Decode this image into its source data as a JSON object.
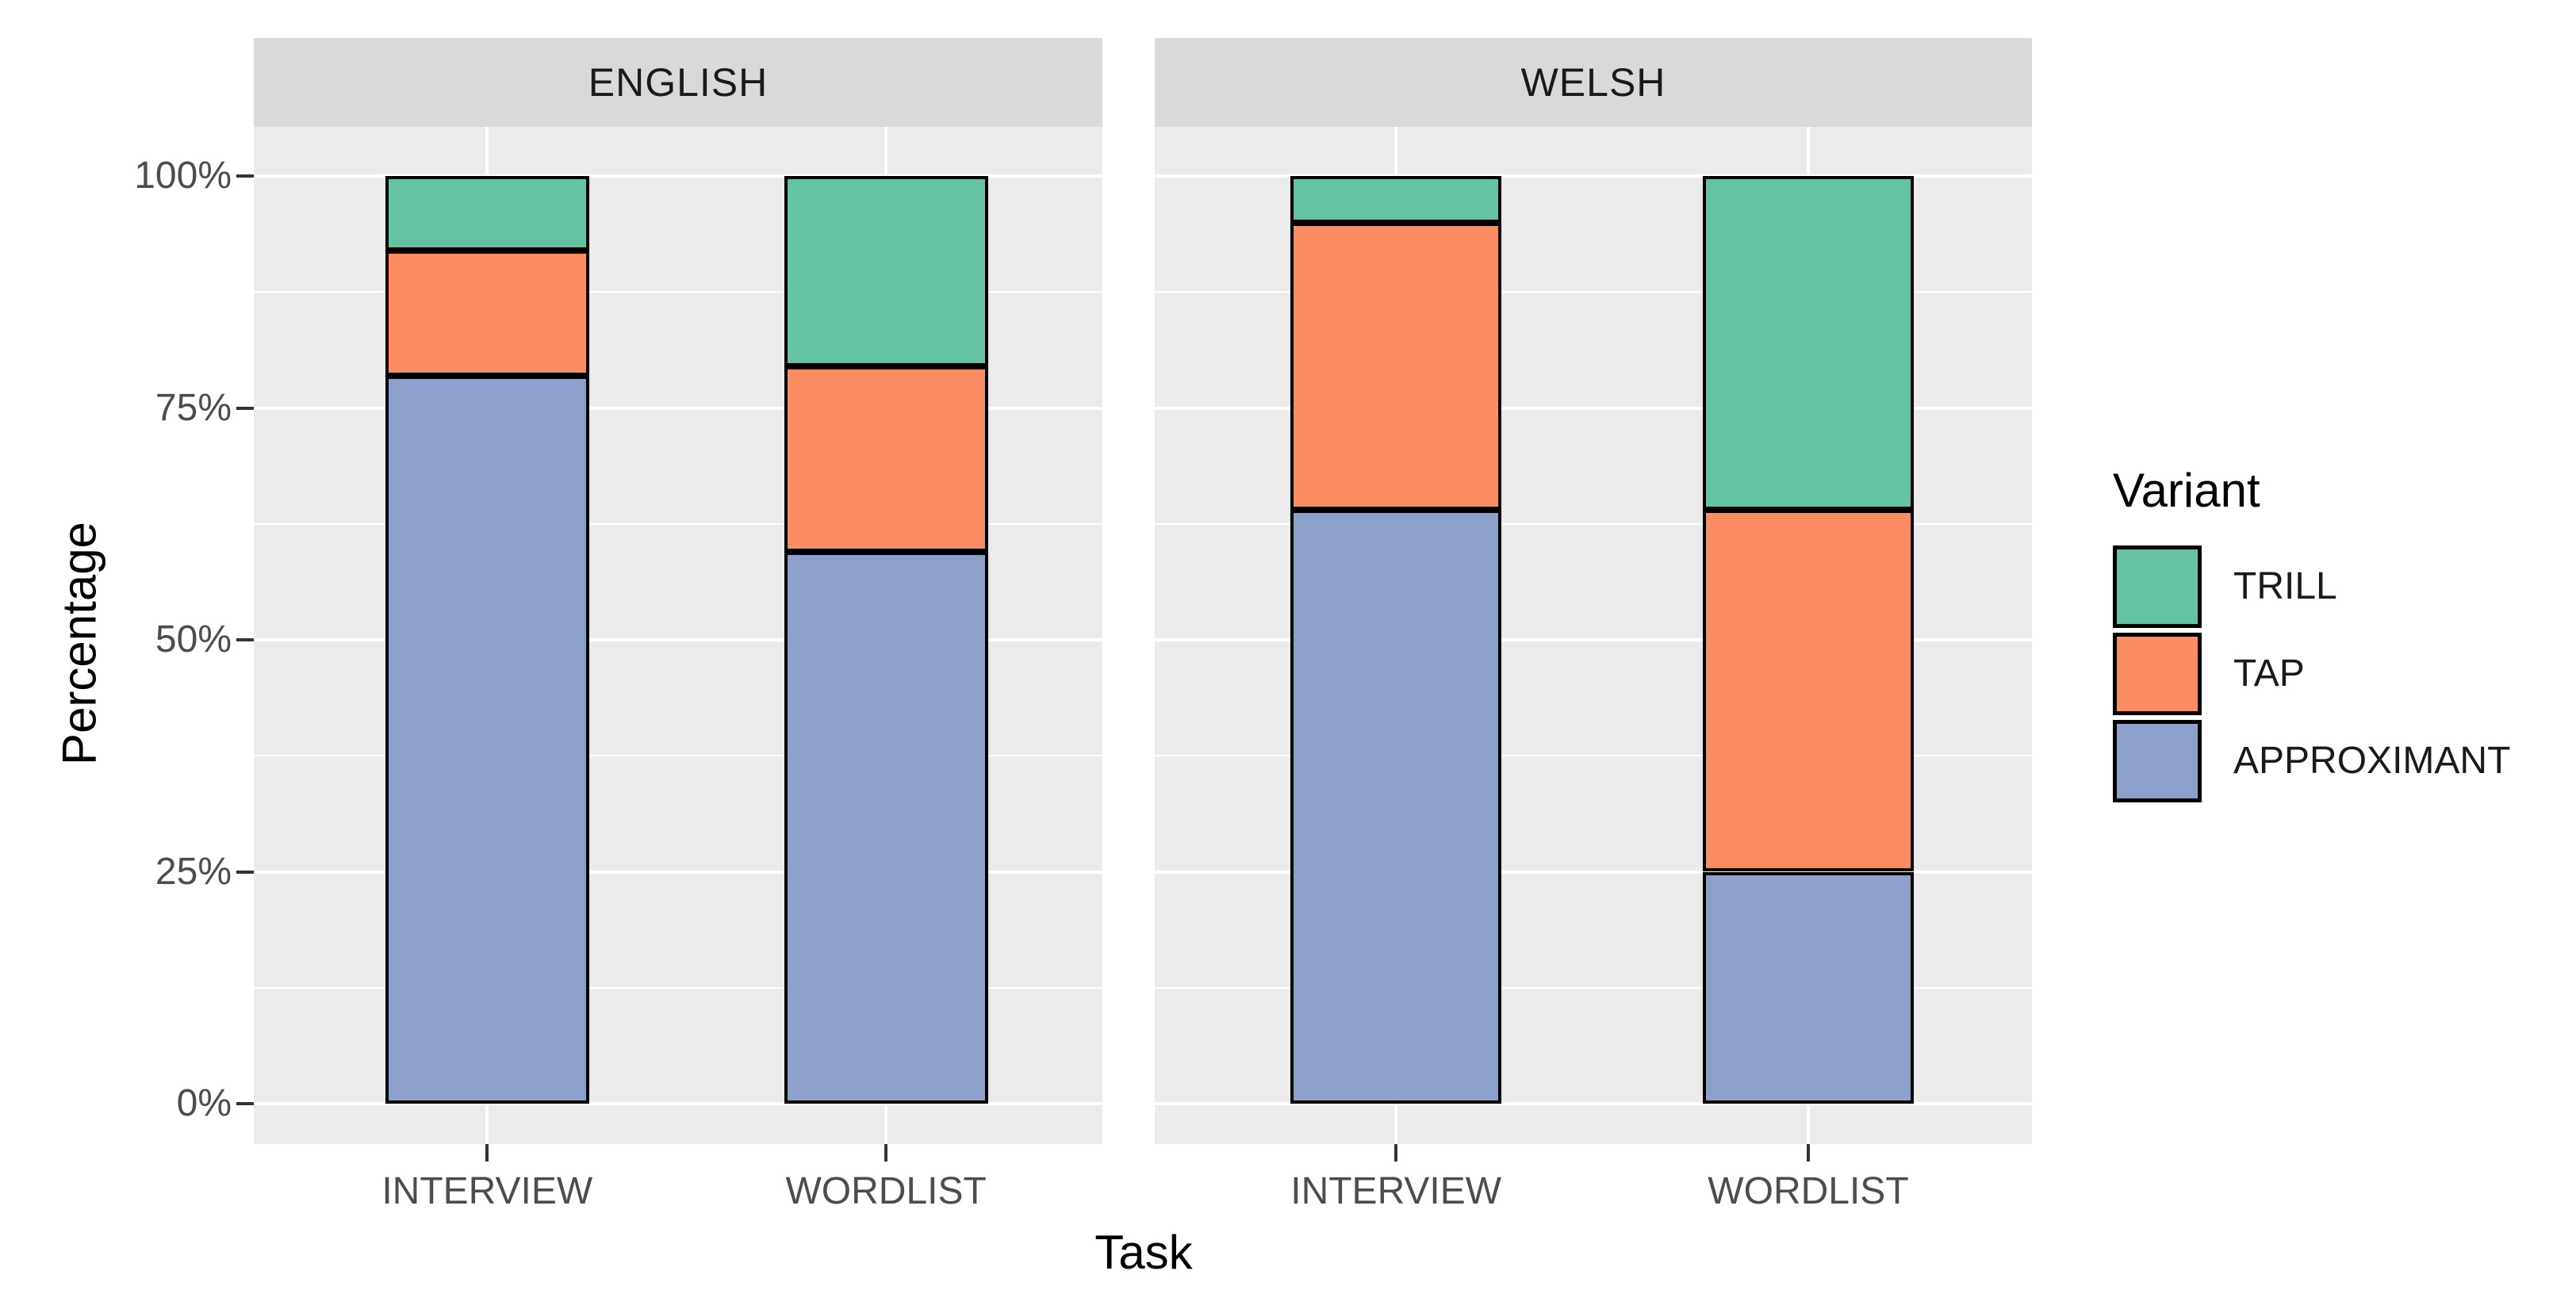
{
  "chart_data": {
    "type": "bar",
    "subtype": "stacked-percentage",
    "title": "",
    "xlabel": "Task",
    "ylabel": "Percentage",
    "facets": [
      "ENGLISH",
      "WELSH"
    ],
    "categories": [
      "INTERVIEW",
      "WORDLIST"
    ],
    "y_ticks": [
      {
        "label": "0%",
        "value": 0
      },
      {
        "label": "25%",
        "value": 25
      },
      {
        "label": "50%",
        "value": 50
      },
      {
        "label": "75%",
        "value": 75
      },
      {
        "label": "100%",
        "value": 100
      }
    ],
    "y_minor_ticks": [
      12.5,
      37.5,
      62.5,
      87.5
    ],
    "ylim": [
      0,
      100
    ],
    "grid": "on",
    "legend": {
      "title": "Variant",
      "position": "right",
      "entries": [
        "TRILL",
        "TAP",
        "APPROXIMANT"
      ]
    },
    "series": [
      {
        "name": "TRILL",
        "color": "#66C2A5",
        "values": {
          "ENGLISH": [
            8,
            20.5
          ],
          "WELSH": [
            5,
            36
          ]
        }
      },
      {
        "name": "TAP",
        "color": "#FC8D62",
        "values": {
          "ENGLISH": [
            13.5,
            20
          ],
          "WELSH": [
            31,
            39
          ]
        }
      },
      {
        "name": "APPROXIMANT",
        "color": "#8DA0CB",
        "values": {
          "ENGLISH": [
            78.5,
            59.5
          ],
          "WELSH": [
            64,
            25
          ]
        }
      }
    ],
    "style": {
      "panel_bg": "#EBEBEB",
      "strip_bg": "#D9D9D9",
      "gridline": "#FFFFFF",
      "axis_text": "#4D4D4D",
      "bar_outline": "#000000"
    }
  }
}
